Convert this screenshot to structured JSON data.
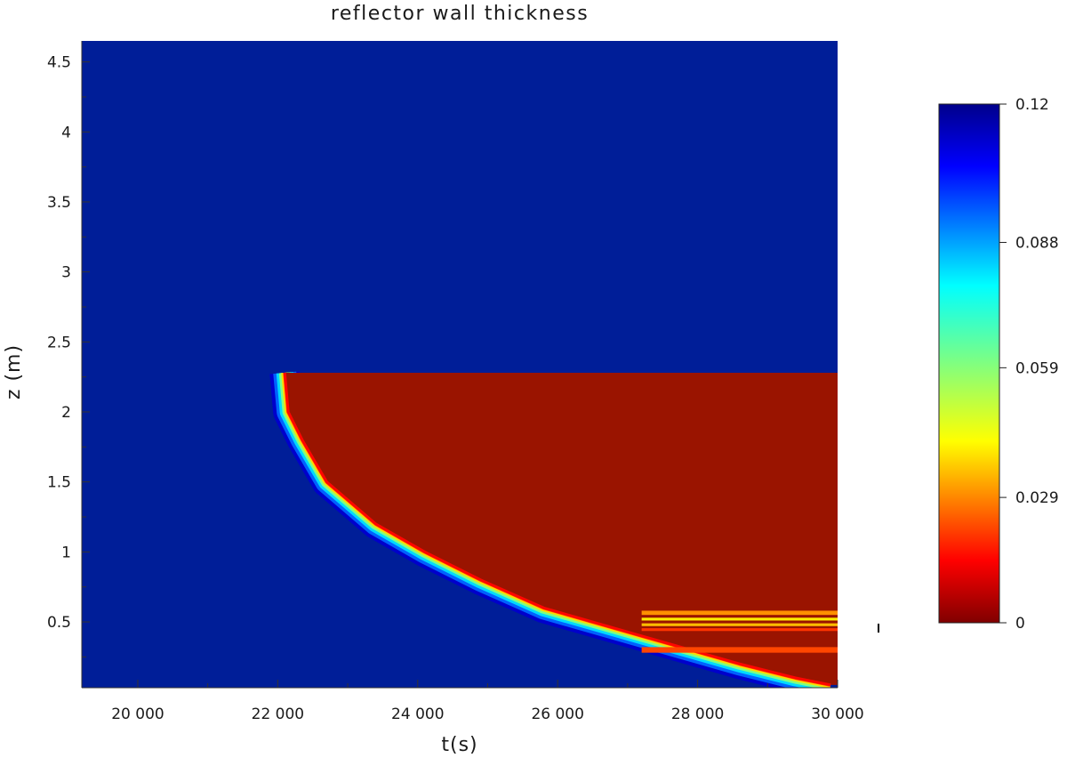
{
  "chart_data": {
    "type": "heatmap",
    "title": "reflector wall thickness",
    "xlabel": "t(s)",
    "ylabel": "z (m)",
    "xlim": [
      19200,
      30000
    ],
    "ylim": [
      0.03,
      4.65
    ],
    "x_ticks": [
      {
        "value": 20000,
        "label": "20 000"
      },
      {
        "value": 22000,
        "label": "22 000"
      },
      {
        "value": 24000,
        "label": "24 000"
      },
      {
        "value": 26000,
        "label": "26 000"
      },
      {
        "value": 28000,
        "label": "28 000"
      },
      {
        "value": 30000,
        "label": "30 000"
      }
    ],
    "y_ticks": [
      {
        "value": 0.5,
        "label": "0.5"
      },
      {
        "value": 1,
        "label": "1"
      },
      {
        "value": 1.5,
        "label": "1.5"
      },
      {
        "value": 2,
        "label": "2"
      },
      {
        "value": 2.5,
        "label": "2.5"
      },
      {
        "value": 3,
        "label": "3"
      },
      {
        "value": 3.5,
        "label": "3.5"
      },
      {
        "value": 4,
        "label": "4"
      },
      {
        "value": 4.5,
        "label": "4.5"
      }
    ],
    "initial_value": 0.12,
    "consumed_value": 0,
    "ablation_front": {
      "z": [
        2.28,
        2.0,
        1.8,
        1.5,
        1.2,
        1.0,
        0.8,
        0.6,
        0.5,
        0.4,
        0.3,
        0.2,
        0.1,
        0.05
      ],
      "t": [
        22100,
        22150,
        22350,
        22700,
        23400,
        24100,
        24900,
        25800,
        26500,
        27200,
        27900,
        28600,
        29400,
        29900
      ]
    },
    "melt_top_z": 2.28,
    "layered_band": {
      "t_start": 27200,
      "layers": [
        {
          "z0": 0.55,
          "z1": 0.58,
          "value": 0.03
        },
        {
          "z0": 0.51,
          "z1": 0.53,
          "value": 0.04
        },
        {
          "z0": 0.47,
          "z1": 0.49,
          "value": 0.035
        },
        {
          "z0": 0.435,
          "z1": 0.455,
          "value": 0.02
        },
        {
          "z0": 0.28,
          "z1": 0.32,
          "value": 0.022
        }
      ]
    },
    "colorbar": {
      "min": 0,
      "max": 0.12,
      "ticks": [
        {
          "value": 0,
          "label": "0"
        },
        {
          "value": 0.029,
          "label": "0.029"
        },
        {
          "value": 0.059,
          "label": "0.059"
        },
        {
          "value": 0.088,
          "label": "0.088"
        },
        {
          "value": 0.12,
          "label": "0.12"
        }
      ],
      "colormap": "jet"
    }
  }
}
